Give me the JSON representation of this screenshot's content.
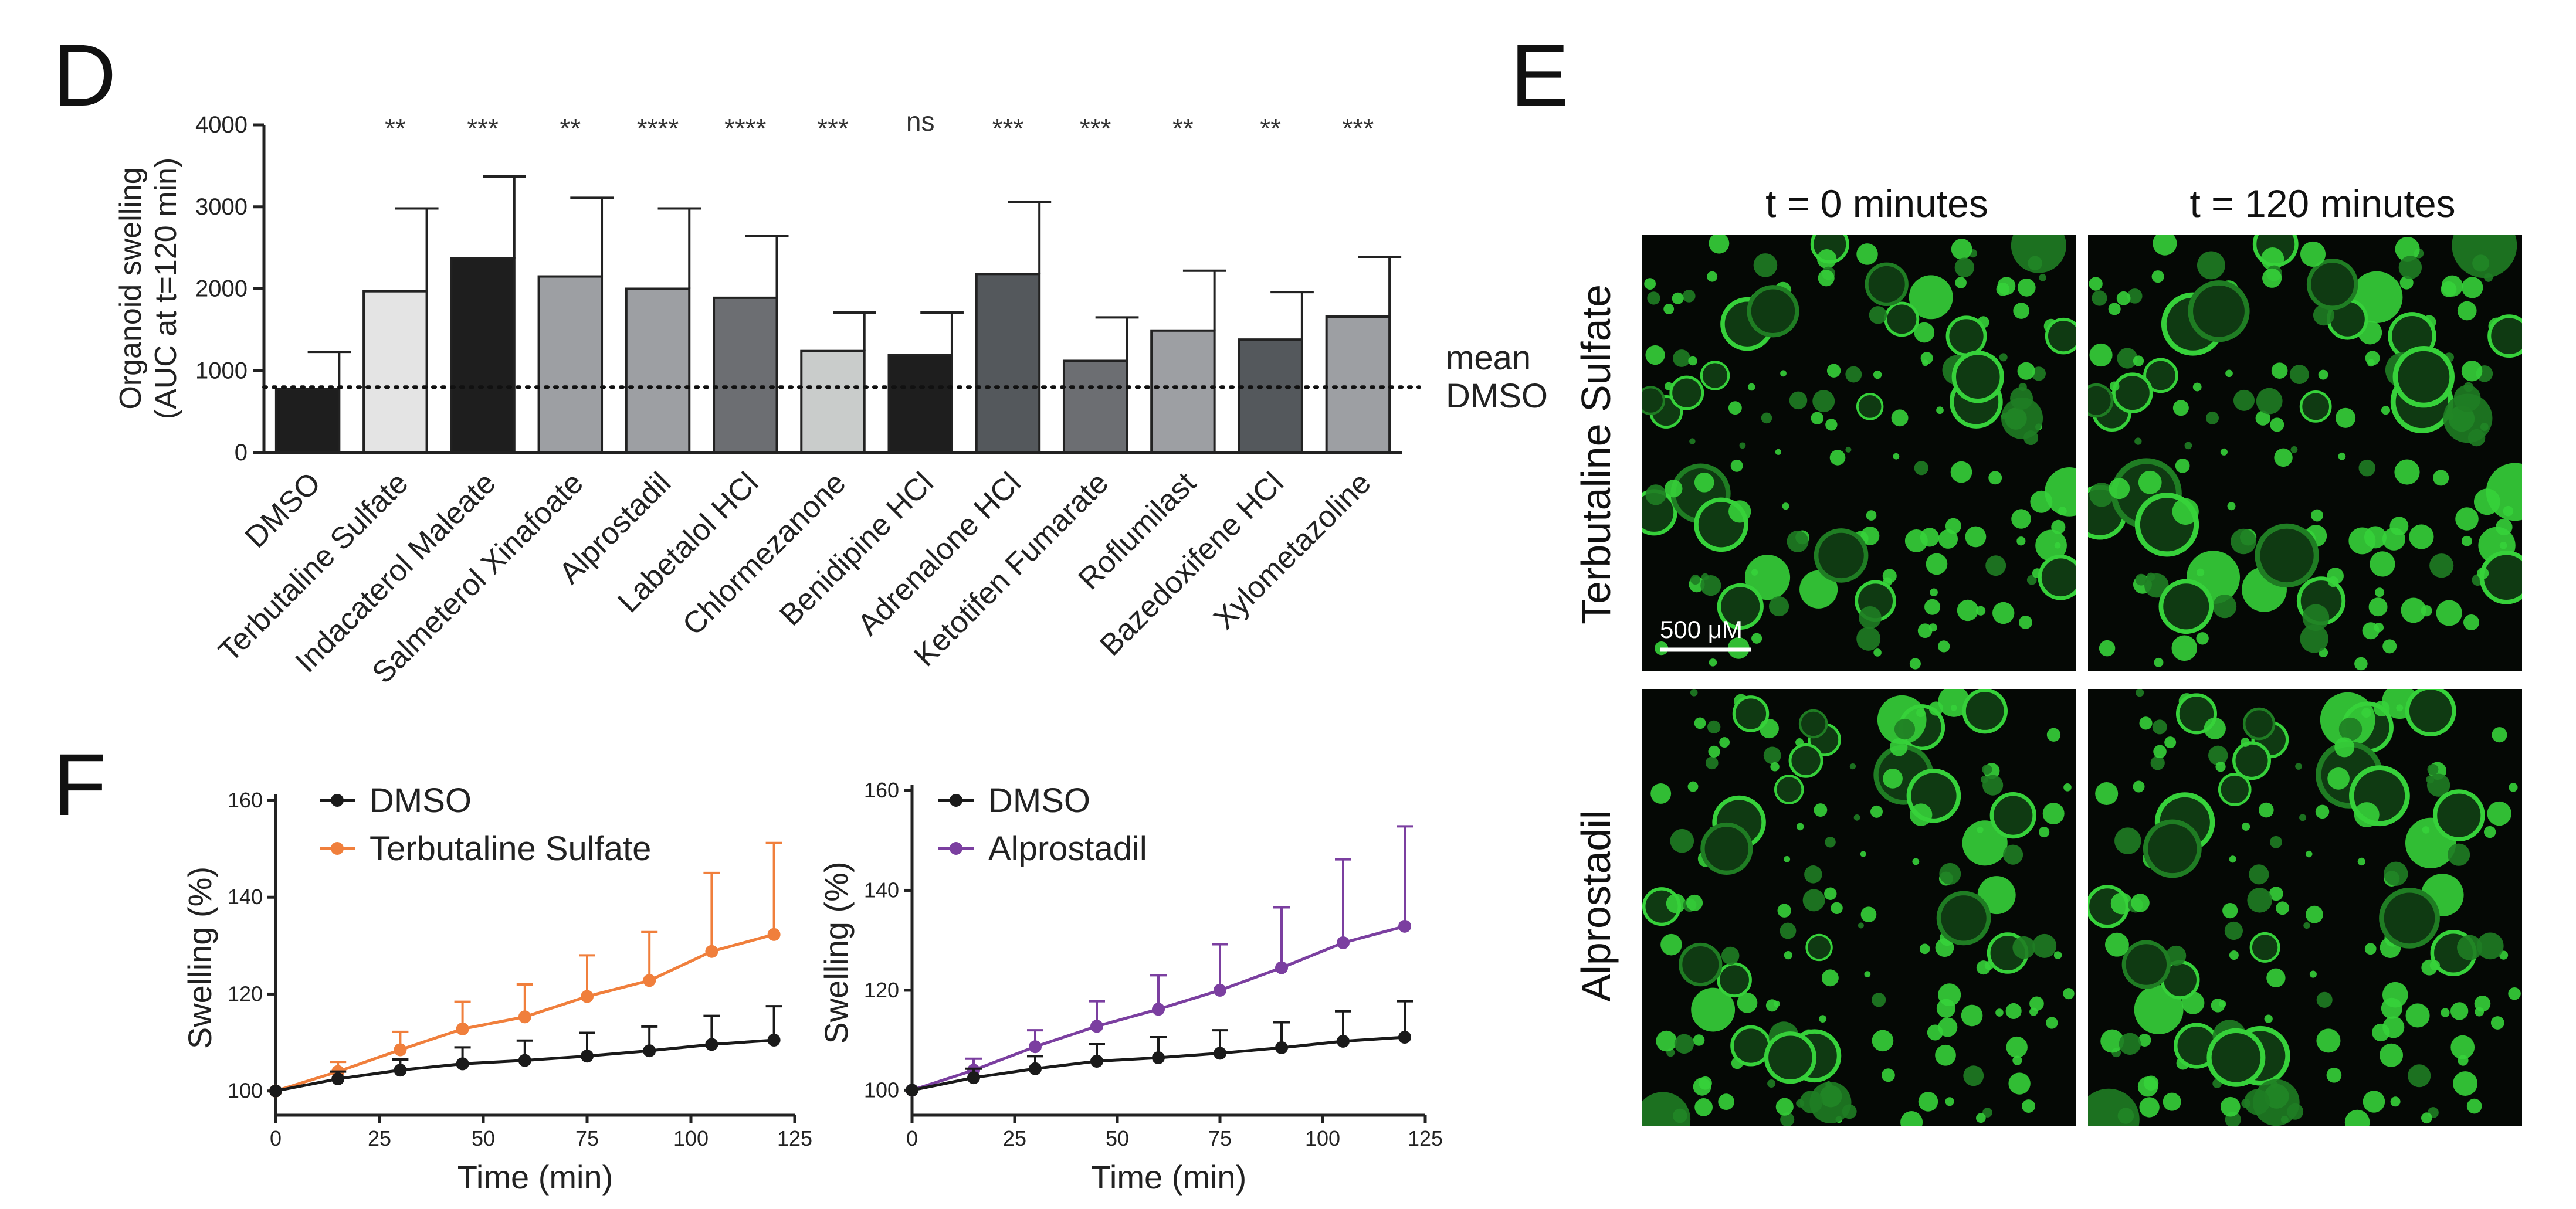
{
  "panels": {
    "d": "D",
    "e": "E",
    "f": "F"
  },
  "colors": {
    "orange": "#f07f3c",
    "purple": "#7b3fa0",
    "black": "#1a1a1a",
    "micro_bg": "#050805",
    "micro_fg": "#36d13a"
  },
  "chart_data": [
    {
      "id": "D",
      "type": "bar",
      "ylabel": [
        "Organoid swelling",
        "(AUC at t=120 min)"
      ],
      "ylim": [
        0,
        4000
      ],
      "yticks": [
        0,
        1000,
        2000,
        3000,
        4000
      ],
      "reference_line": {
        "value": 800,
        "label": [
          "mean",
          "DMSO"
        ],
        "style": "dotted"
      },
      "categories": [
        "DMSO",
        "Terbutaline Sulfate",
        "Indacaterol Maleate",
        "Salmeterol Xinafoate",
        "Alprostadil",
        "Labetalol HCl",
        "Chlormezanone",
        "Benidipine HCl",
        "Adrenalone HCl",
        "Ketotifen Fumarate",
        "Roflumilast",
        "Bazedoxifene HCl",
        "Xylometazoline"
      ],
      "values": [
        780,
        1970,
        2370,
        2150,
        2000,
        1890,
        1240,
        1190,
        2180,
        1120,
        1490,
        1380,
        1660
      ],
      "error_upper": [
        1230,
        2980,
        3370,
        3110,
        2980,
        2640,
        1710,
        1710,
        3060,
        1650,
        2220,
        1960,
        2390
      ],
      "significance": [
        "",
        "**",
        "***",
        "**",
        "****",
        "****",
        "***",
        "ns",
        "***",
        "***",
        "**",
        "**",
        "***"
      ],
      "bar_colors": [
        "#1e1e1e",
        "#e4e4e4",
        "#1e1e1e",
        "#9d9fa3",
        "#9d9fa3",
        "#6c6e72",
        "#c9cccb",
        "#1e1e1e",
        "#54585c",
        "#6c6e72",
        "#9d9fa3",
        "#54585c",
        "#9d9fa3"
      ]
    },
    {
      "id": "F-left",
      "type": "line",
      "xlabel": "Time (min)",
      "ylabel": "Swelling (%)",
      "xlim": [
        0,
        125
      ],
      "ylim": [
        95,
        160
      ],
      "xticks": [
        0,
        25,
        50,
        75,
        100,
        125
      ],
      "yticks": [
        100,
        120,
        140,
        160
      ],
      "x": [
        0,
        15,
        30,
        45,
        60,
        75,
        90,
        105,
        120
      ],
      "series": [
        {
          "name": "DMSO",
          "color": "#1a1a1a",
          "values": [
            100,
            102.5,
            104.3,
            105.6,
            106.3,
            107.2,
            108.3,
            109.6,
            110.5
          ],
          "error_upper": [
            100,
            104,
            106.5,
            109,
            110.4,
            112,
            113.3,
            115.5,
            117.5
          ]
        },
        {
          "name": "Terbutaline Sulfate",
          "color": "#f07f3c",
          "values": [
            100,
            104,
            108.5,
            112.8,
            115.3,
            119.5,
            122.8,
            128.8,
            132.3
          ],
          "error_upper": [
            100,
            106,
            112.2,
            118.4,
            122,
            128,
            132.8,
            145,
            151.2
          ]
        }
      ]
    },
    {
      "id": "F-right",
      "type": "line",
      "xlabel": "Time (min)",
      "ylabel": "Swelling (%)",
      "xlim": [
        0,
        125
      ],
      "ylim": [
        95,
        160
      ],
      "xticks": [
        0,
        25,
        50,
        75,
        100,
        125
      ],
      "yticks": [
        100,
        120,
        140,
        160
      ],
      "x": [
        0,
        15,
        30,
        45,
        60,
        75,
        90,
        105,
        120
      ],
      "series": [
        {
          "name": "DMSO",
          "color": "#1a1a1a",
          "values": [
            100,
            102.5,
            104.3,
            105.8,
            106.5,
            107.4,
            108.5,
            109.8,
            110.6
          ],
          "error_upper": [
            100,
            104.3,
            106.8,
            109.2,
            110.6,
            112,
            113.6,
            115.8,
            117.8
          ]
        },
        {
          "name": "Alprostadil",
          "color": "#7b3fa0",
          "values": [
            100,
            104,
            108.7,
            112.8,
            116.2,
            120,
            124.5,
            129.5,
            132.8
          ],
          "error_upper": [
            100,
            106.3,
            112,
            117.8,
            123,
            129.2,
            136.6,
            146.2,
            152.8
          ]
        }
      ]
    }
  ],
  "micrographs": {
    "columns": [
      "t = 0 minutes",
      "t = 120 minutes"
    ],
    "rows": [
      "Terbutaline Sulfate",
      "Alprostadil"
    ],
    "scale_bar": "500 μM"
  }
}
